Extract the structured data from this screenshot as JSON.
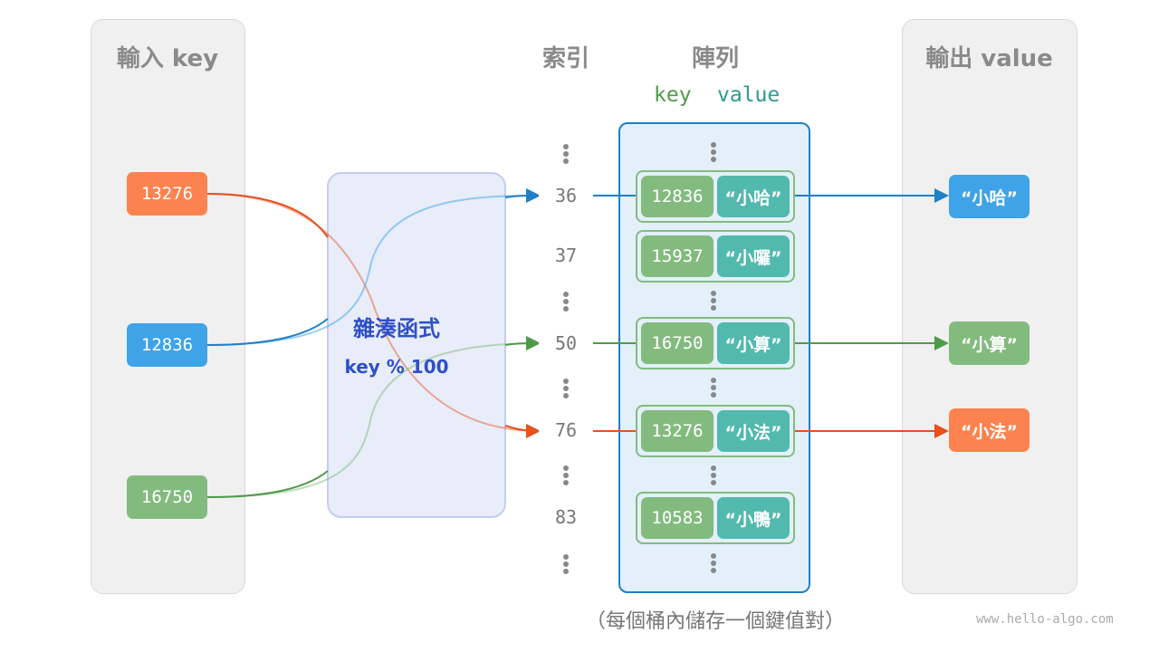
{
  "headers": {
    "input": "輸入 key",
    "index": "索引",
    "array": "陣列",
    "output": "輸出 value",
    "key": "key",
    "value": "value"
  },
  "inputs": [
    {
      "key": "13276",
      "color": "#fc8350"
    },
    {
      "key": "12836",
      "color": "#3fa3e8"
    },
    {
      "key": "16750",
      "color": "#83bb7f"
    }
  ],
  "hash": {
    "title": "雜湊函式",
    "formula": "key % 100"
  },
  "indices": [
    "36",
    "37",
    "50",
    "76",
    "83"
  ],
  "buckets": [
    {
      "key": "12836",
      "value": "“小哈”"
    },
    {
      "key": "15937",
      "value": "“小囉”"
    },
    {
      "key": "16750",
      "value": "“小算”"
    },
    {
      "key": "13276",
      "value": "“小法”"
    },
    {
      "key": "10583",
      "value": "“小鴨”"
    }
  ],
  "outputs": [
    {
      "value": "“小哈”",
      "color": "#3fa3e8"
    },
    {
      "value": "“小算”",
      "color": "#83bb7f"
    },
    {
      "value": "“小法”",
      "color": "#fc8350"
    }
  ],
  "caption": "（每個桶內儲存一個鍵值對）",
  "watermark": "www.hello-algo.com"
}
